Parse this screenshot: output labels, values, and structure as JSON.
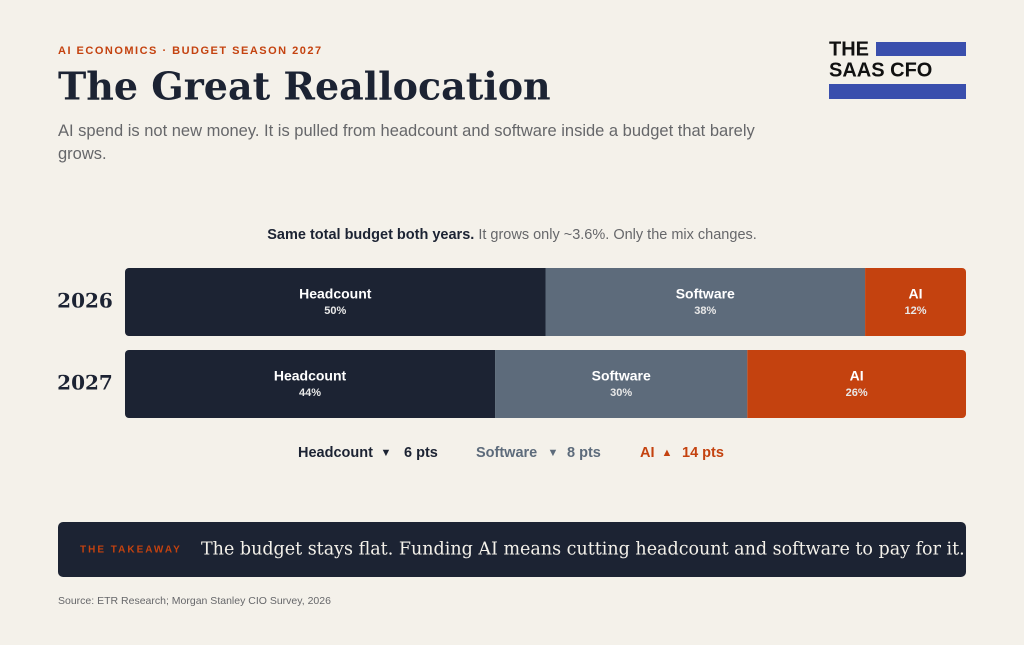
{
  "header": {
    "eyebrow": "AI ECONOMICS · BUDGET SEASON 2027",
    "title": "The Great Reallocation",
    "subtitle": "AI spend is not new money. It is pulled from headcount and software inside a budget that barely grows.",
    "logo_line1": "THE",
    "logo_line2": "SAAS CFO"
  },
  "chart_data": {
    "type": "bar",
    "orientation": "horizontal",
    "stacked": true,
    "note_bold": "Same total budget both years.",
    "note": "It grows only ~3.6%. Only the mix changes.",
    "categories": [
      "2026",
      "2027"
    ],
    "xlim": [
      0,
      100
    ],
    "series": [
      {
        "name": "Headcount",
        "color": "#1c2333",
        "values": [
          50,
          44
        ],
        "value_labels": [
          "50%",
          "44%"
        ]
      },
      {
        "name": "Software",
        "color": "#5d6b7b",
        "values": [
          38,
          30
        ],
        "value_labels": [
          "38%",
          "30%"
        ]
      },
      {
        "name": "AI",
        "color": "#c4420f",
        "values": [
          12,
          26
        ],
        "value_labels": [
          "12%",
          "26%"
        ]
      }
    ],
    "changes": [
      {
        "arrow": "▼",
        "label": "6 pts"
      },
      {
        "arrow": "▼",
        "label": "8 pts"
      },
      {
        "arrow": "▲",
        "label": "14 pts"
      }
    ]
  },
  "takeaway": {
    "label": "THE TAKEAWAY",
    "text": "The budget stays flat. Funding AI means cutting headcount and software to pay for it."
  },
  "source": "Source: ETR Research; Morgan Stanley CIO Survey, 2026"
}
